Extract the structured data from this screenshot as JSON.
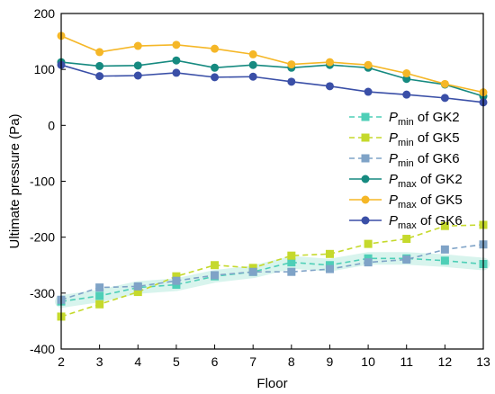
{
  "chart_data": {
    "type": "line",
    "xlabel": "Floor",
    "ylabel": "Ultimate pressure (Pa)",
    "xlim": [
      2,
      13
    ],
    "ylim": [
      -400,
      200
    ],
    "x_ticks": [
      2,
      3,
      4,
      5,
      6,
      7,
      8,
      9,
      10,
      11,
      12,
      13
    ],
    "y_ticks": [
      -400,
      -300,
      -200,
      -100,
      0,
      100,
      200
    ],
    "legend_position": "right",
    "x": [
      2,
      3,
      4,
      5,
      6,
      7,
      8,
      9,
      10,
      11,
      12,
      13
    ],
    "series": [
      {
        "name_symbol": "P",
        "name_sub": "min",
        "name_suffix": " of GK2",
        "style": "dashed-square",
        "color": "#4ecfb7",
        "fill": "#c8efe6",
        "values": [
          -315,
          -305,
          -290,
          -285,
          -270,
          -262,
          -245,
          -250,
          -238,
          -238,
          -242,
          -248
        ]
      },
      {
        "name_symbol": "P",
        "name_sub": "min",
        "name_suffix": " of GK5",
        "style": "dashed-square",
        "color": "#c5d92c",
        "values": [
          -342,
          -320,
          -298,
          -270,
          -250,
          -255,
          -233,
          -230,
          -212,
          -203,
          -180,
          -178
        ]
      },
      {
        "name_symbol": "P",
        "name_sub": "min",
        "name_suffix": " of GK6",
        "style": "dashed-square",
        "color": "#7fa3c7",
        "values": [
          -312,
          -290,
          -288,
          -278,
          -268,
          -262,
          -262,
          -257,
          -245,
          -240,
          -222,
          -213
        ]
      },
      {
        "name_symbol": "P",
        "name_sub": "max",
        "name_suffix": " of GK2",
        "style": "solid-circle",
        "color": "#168a80",
        "values": [
          113,
          106,
          107,
          116,
          103,
          108,
          103,
          108,
          103,
          83,
          73,
          52
        ]
      },
      {
        "name_symbol": "P",
        "name_sub": "max",
        "name_suffix": " of GK5",
        "style": "solid-circle",
        "color": "#f5b727",
        "values": [
          160,
          131,
          142,
          144,
          137,
          127,
          109,
          113,
          108,
          93,
          74,
          59
        ]
      },
      {
        "name_symbol": "P",
        "name_sub": "max",
        "name_suffix": " of GK6",
        "style": "solid-circle",
        "color": "#3a4fa7",
        "values": [
          108,
          88,
          89,
          94,
          86,
          87,
          78,
          70,
          60,
          55,
          49,
          41
        ]
      }
    ]
  }
}
